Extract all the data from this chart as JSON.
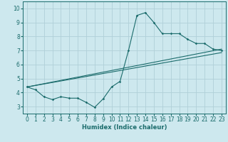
{
  "xlabel": "Humidex (Indice chaleur)",
  "bg_color": "#cde8ee",
  "grid_color": "#b0d0d8",
  "line_color": "#1a6b6b",
  "xlim": [
    -0.5,
    23.5
  ],
  "ylim": [
    2.5,
    10.5
  ],
  "xticks": [
    0,
    1,
    2,
    3,
    4,
    5,
    6,
    7,
    8,
    9,
    10,
    11,
    12,
    13,
    14,
    15,
    16,
    17,
    18,
    19,
    20,
    21,
    22,
    23
  ],
  "yticks": [
    3,
    4,
    5,
    6,
    7,
    8,
    9,
    10
  ],
  "series1_x": [
    0,
    1,
    2,
    3,
    4,
    5,
    6,
    7,
    8,
    9,
    10,
    11,
    12,
    13,
    14,
    15,
    16,
    17,
    18,
    19,
    20,
    21,
    22,
    23
  ],
  "series1_y": [
    4.4,
    4.2,
    3.7,
    3.5,
    3.7,
    3.6,
    3.6,
    3.3,
    2.95,
    3.55,
    4.4,
    4.8,
    7.0,
    9.5,
    9.7,
    9.0,
    8.2,
    8.2,
    8.2,
    7.8,
    7.5,
    7.5,
    7.1,
    7.0
  ],
  "series2_x": [
    0,
    23
  ],
  "series2_y": [
    4.4,
    7.1
  ],
  "series3_x": [
    0,
    23
  ],
  "series3_y": [
    4.4,
    6.85
  ]
}
